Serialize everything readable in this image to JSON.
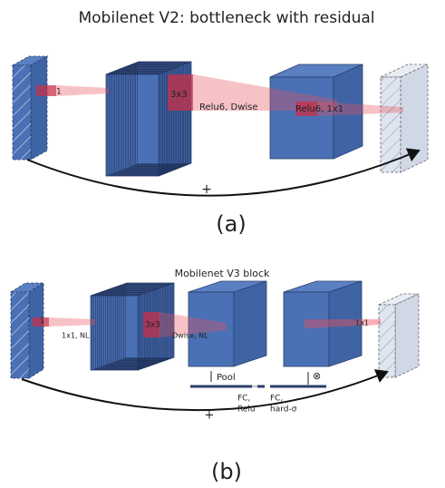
{
  "panel_a": {
    "title": "Mobilenet V2: bottleneck with residual",
    "labels": {
      "input_kernel": "1",
      "kernel_3x3": "3x3",
      "dwise": "Relu6, Dwise",
      "project": "Relu6, 1x1",
      "residual": "+"
    },
    "caption": "(a)"
  },
  "panel_b": {
    "title": "Mobilenet V3 block",
    "labels": {
      "input_kernel": "1",
      "expand": "1x1, NL",
      "kernel_3x3": "3x3",
      "dwise": "Dwise, NL",
      "project": "1x1",
      "pool": "Pool",
      "fc_relu": [
        "FC,",
        "Relu"
      ],
      "fc_hard": [
        "FC,",
        "hard-σ"
      ],
      "multiply": "⊗",
      "residual": "+"
    },
    "caption": "(b)"
  }
}
